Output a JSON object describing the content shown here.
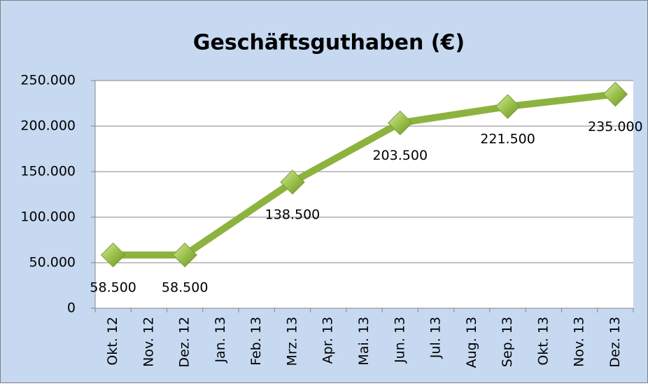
{
  "chart_data": {
    "type": "line",
    "title": "Geschäftsguthaben (€)",
    "categories": [
      "Okt. 12",
      "Nov. 12",
      "Dez. 12",
      "Jan. 13",
      "Feb. 13",
      "Mrz. 13",
      "Apr. 13",
      "Mai. 13",
      "Jun. 13",
      "Jul. 13",
      "Aug. 13",
      "Sep. 13",
      "Okt. 13",
      "Nov. 13",
      "Dez. 13"
    ],
    "series": [
      {
        "name": "Geschäftsguthaben",
        "color": "#8db33f",
        "x": [
          "Okt. 12",
          "Dez. 12",
          "Mrz. 13",
          "Jun. 13",
          "Sep. 13",
          "Dez. 13"
        ],
        "values": [
          58500,
          58500,
          138500,
          203500,
          221500,
          235000
        ],
        "value_labels": [
          "58.500",
          "58.500",
          "138.500",
          "203.500",
          "221.500",
          "235.000"
        ]
      }
    ],
    "ylim": [
      0,
      250000
    ],
    "yticks": [
      0,
      {
        "value": 50000,
        "label": "50.000"
      },
      {
        "value": 100000,
        "label": "100.000"
      },
      {
        "value": 150000,
        "label": "150.000"
      },
      {
        "value": 200000,
        "label": "200.000"
      },
      {
        "value": 250000,
        "label": "250.000"
      }
    ],
    "grid": true
  }
}
